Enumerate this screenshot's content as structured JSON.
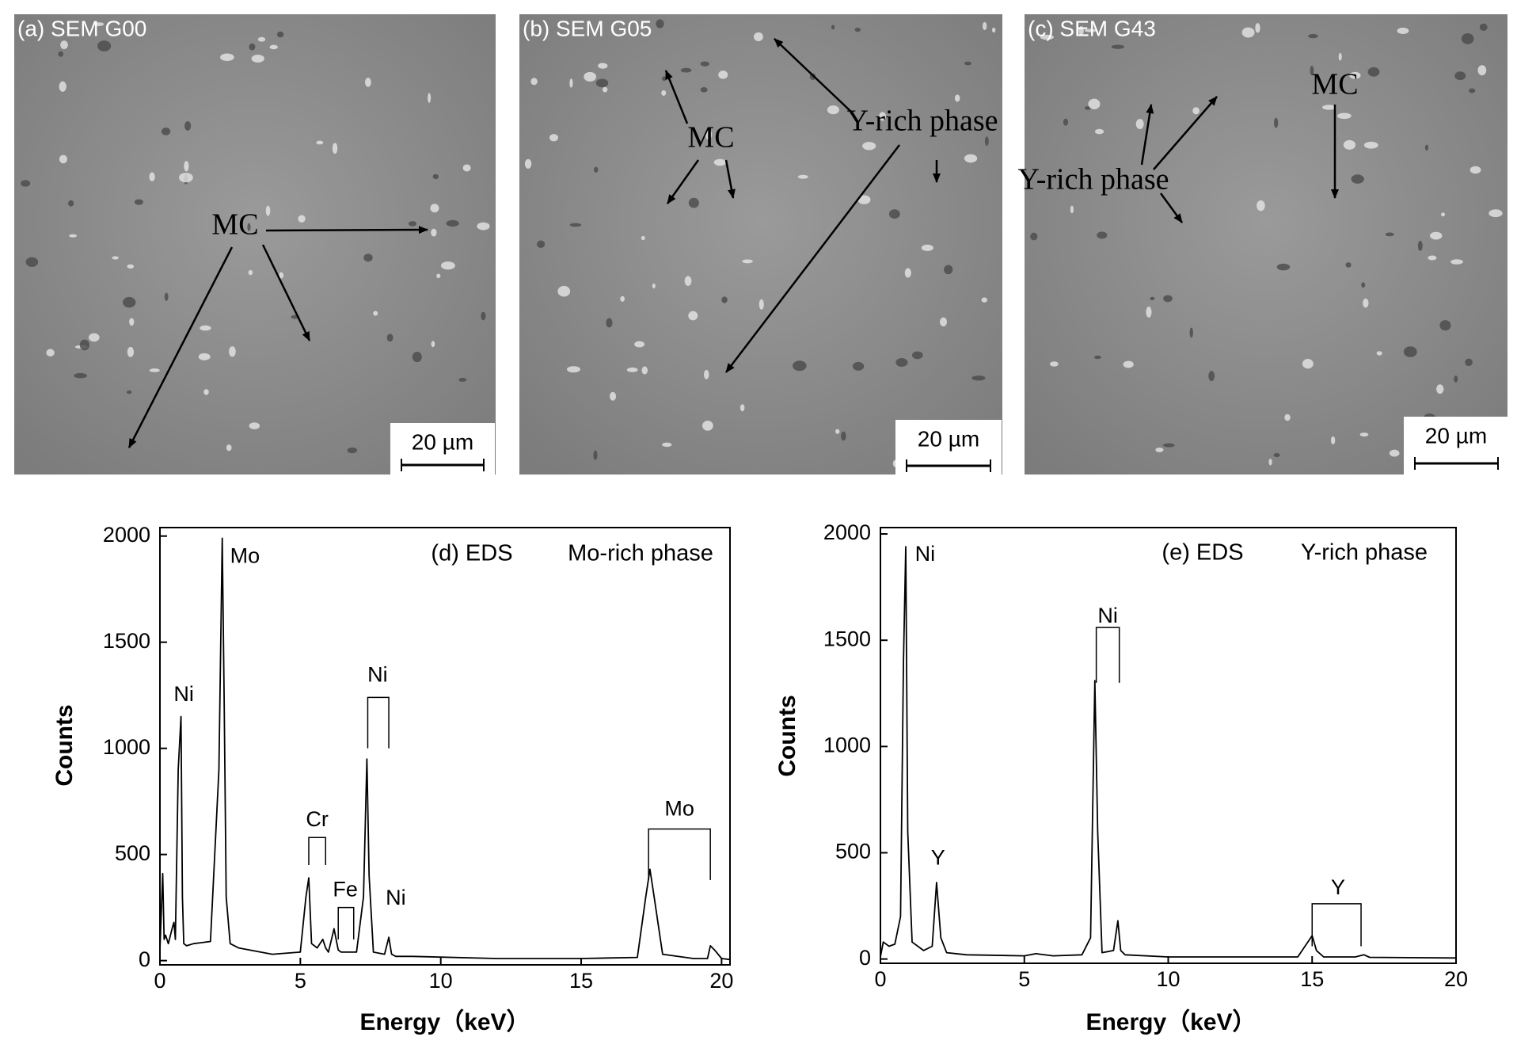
{
  "sem_panels": [
    {
      "label": "(a) SEM G00",
      "annotations": [
        "MC"
      ],
      "scale_bar": "20 µm"
    },
    {
      "label": "(b) SEM G05",
      "annotations": [
        "MC",
        "Y-rich phase"
      ],
      "scale_bar": "20 µm"
    },
    {
      "label": "(c) SEM G43",
      "annotations": [
        "Y-rich phase",
        "MC"
      ],
      "scale_bar": "20 µm"
    }
  ],
  "chart_data": [
    {
      "type": "line",
      "title": "(d) EDS",
      "subtitle": "Mo-rich phase",
      "xlabel": "Energy（keV）",
      "ylabel": "Counts",
      "xlim": [
        0,
        20.3
      ],
      "ylim": [
        -20,
        2040
      ],
      "xticks": [
        0,
        5,
        10,
        15,
        20
      ],
      "yticks": [
        0,
        500,
        1000,
        1500,
        2000
      ],
      "annotations": [
        "Mo",
        "Ni",
        "Ni",
        "Cr",
        "Fe",
        "Ni",
        "Mo"
      ],
      "x": [
        0,
        0.1,
        0.15,
        0.2,
        0.3,
        0.45,
        0.5,
        0.55,
        0.65,
        0.75,
        0.8,
        0.85,
        0.95,
        1.2,
        1.8,
        2.1,
        2.22,
        2.29,
        2.36,
        2.5,
        2.8,
        4,
        5,
        5.2,
        5.3,
        5.4,
        5.6,
        5.8,
        5.9,
        6.0,
        6.2,
        6.35,
        6.45,
        6.6,
        7,
        7.25,
        7.37,
        7.45,
        7.6,
        8.0,
        8.15,
        8.25,
        8.4,
        9,
        12,
        15,
        17,
        17.3,
        17.45,
        17.6,
        17.9,
        19,
        19.5,
        19.6,
        19.75,
        20,
        20.3
      ],
      "series": [
        {
          "name": "Mo-rich phase",
          "color": "#000000",
          "values": [
            50,
            410,
            100,
            120,
            80,
            160,
            180,
            100,
            900,
            1150,
            300,
            80,
            70,
            80,
            90,
            900,
            1990,
            1200,
            300,
            80,
            60,
            30,
            40,
            300,
            390,
            80,
            60,
            100,
            60,
            40,
            150,
            50,
            40,
            40,
            40,
            300,
            950,
            400,
            40,
            30,
            110,
            30,
            20,
            20,
            10,
            10,
            15,
            300,
            430,
            300,
            30,
            10,
            10,
            70,
            50,
            10,
            5
          ]
        }
      ]
    },
    {
      "type": "line",
      "title": "(e) EDS",
      "subtitle": "Y-rich phase",
      "xlabel": "Energy（keV）",
      "ylabel": "Counts",
      "xlim": [
        0,
        20
      ],
      "ylim": [
        -20,
        2030
      ],
      "xticks": [
        0,
        5,
        10,
        15,
        20
      ],
      "yticks": [
        0,
        500,
        1000,
        1500,
        2000
      ],
      "annotations": [
        "Ni",
        "Y",
        "Ni",
        "Y"
      ],
      "x": [
        0,
        0.1,
        0.3,
        0.5,
        0.7,
        0.8,
        0.88,
        0.95,
        1.1,
        1.5,
        1.8,
        1.95,
        2.1,
        2.3,
        3,
        5,
        5.4,
        6,
        7,
        7.3,
        7.45,
        7.55,
        7.7,
        8.1,
        8.25,
        8.35,
        8.5,
        10,
        14.5,
        14.85,
        15,
        15.15,
        15.4,
        16.5,
        16.8,
        17,
        20
      ],
      "series": [
        {
          "name": "Y-rich phase",
          "color": "#000000",
          "values": [
            10,
            80,
            60,
            70,
            200,
            1400,
            1940,
            600,
            80,
            40,
            60,
            360,
            100,
            30,
            20,
            15,
            25,
            15,
            20,
            100,
            1310,
            600,
            30,
            40,
            180,
            40,
            20,
            10,
            10,
            80,
            110,
            40,
            10,
            10,
            20,
            8,
            5
          ]
        }
      ]
    }
  ]
}
